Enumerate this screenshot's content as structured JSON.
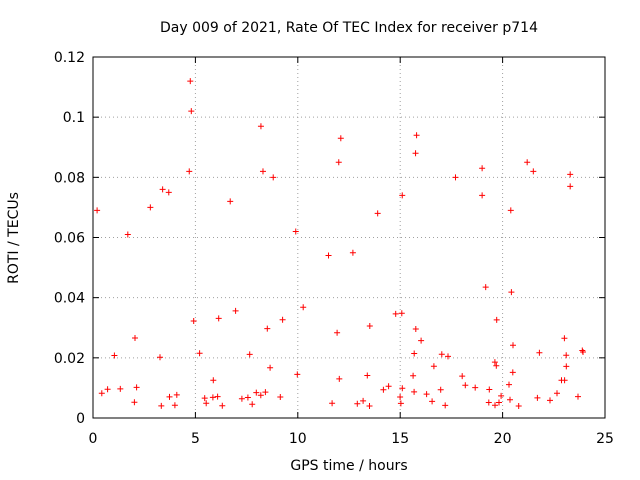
{
  "chart_data": {
    "type": "scatter",
    "title": "Day 009 of 2021, Rate Of TEC Index for receiver p714",
    "xlabel": "GPS time / hours",
    "ylabel": "ROTI / TECUs",
    "xlim": [
      0,
      25
    ],
    "ylim": [
      0,
      0.12
    ],
    "x_ticks": [
      0,
      5,
      10,
      15,
      20,
      25
    ],
    "y_ticks": [
      0,
      0.02,
      0.04,
      0.06,
      0.08,
      0.1,
      0.12
    ],
    "x_tick_labels": [
      "0",
      "5",
      "10",
      "15",
      "20",
      "25"
    ],
    "y_tick_labels": [
      "0",
      "0.02",
      "0.04",
      "0.06",
      "0.08",
      "0.1",
      "0.12"
    ],
    "grid": true,
    "marker": "plus",
    "series": [
      {
        "name": "ROTI",
        "color": "#ff0000",
        "description": "Dense cloud of ROTI samples, mostly 0.003-0.035 TECU, gap near 4.2-4.5 h and 15.2-15.5 h",
        "peaks": [
          {
            "x": 4.75,
            "y": 0.112
          },
          {
            "x": 4.8,
            "y": 0.102
          },
          {
            "x": 8.2,
            "y": 0.097
          },
          {
            "x": 15.8,
            "y": 0.094
          },
          {
            "x": 12.1,
            "y": 0.093
          },
          {
            "x": 15.75,
            "y": 0.088
          },
          {
            "x": 12.0,
            "y": 0.085
          },
          {
            "x": 21.2,
            "y": 0.085
          },
          {
            "x": 19.0,
            "y": 0.083
          },
          {
            "x": 21.5,
            "y": 0.082
          },
          {
            "x": 4.7,
            "y": 0.082
          },
          {
            "x": 8.3,
            "y": 0.082
          },
          {
            "x": 23.3,
            "y": 0.081
          },
          {
            "x": 8.8,
            "y": 0.08
          },
          {
            "x": 17.7,
            "y": 0.08
          },
          {
            "x": 23.3,
            "y": 0.077
          },
          {
            "x": 3.4,
            "y": 0.076
          },
          {
            "x": 15.1,
            "y": 0.074
          },
          {
            "x": 19.0,
            "y": 0.074
          },
          {
            "x": 3.7,
            "y": 0.075
          },
          {
            "x": 0.2,
            "y": 0.069
          },
          {
            "x": 2.8,
            "y": 0.07
          },
          {
            "x": 13.9,
            "y": 0.068
          },
          {
            "x": 20.4,
            "y": 0.069
          },
          {
            "x": 6.7,
            "y": 0.072
          },
          {
            "x": 9.9,
            "y": 0.062
          },
          {
            "x": 1.7,
            "y": 0.061
          },
          {
            "x": 11.5,
            "y": 0.054
          }
        ]
      }
    ]
  }
}
